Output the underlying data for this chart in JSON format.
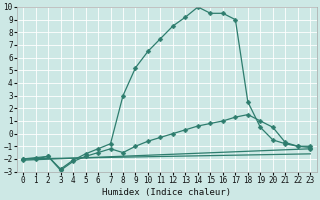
{
  "title": "",
  "xlabel": "Humidex (Indice chaleur)",
  "xlim": [
    -0.5,
    23.5
  ],
  "ylim": [
    -3,
    10
  ],
  "bg_color": "#cde8e5",
  "grid_color": "#ffffff",
  "line_color": "#2e7d6e",
  "line1_x": [
    0,
    1,
    2,
    3,
    4,
    5,
    6,
    7,
    8,
    9,
    10,
    11,
    12,
    13,
    14,
    15,
    16,
    17,
    18,
    19,
    20,
    21,
    22,
    23
  ],
  "line1_y": [
    -2.0,
    -2.0,
    -1.8,
    -2.8,
    -2.1,
    -1.6,
    -1.2,
    -0.8,
    3.0,
    5.2,
    6.5,
    7.5,
    8.5,
    9.2,
    10.0,
    9.5,
    9.5,
    9.0,
    2.5,
    0.5,
    -0.5,
    -0.8,
    -1.0,
    -1.0
  ],
  "line2_x": [
    0,
    1,
    2,
    3,
    4,
    5,
    6,
    7,
    8,
    9,
    10,
    11,
    12,
    13,
    14,
    15,
    16,
    17,
    18,
    19,
    20,
    21,
    22,
    23
  ],
  "line2_y": [
    -2.0,
    -1.9,
    -1.8,
    -2.9,
    -2.2,
    -1.8,
    -1.5,
    -1.2,
    -1.5,
    -1.0,
    -0.6,
    -0.3,
    0.0,
    0.3,
    0.6,
    0.8,
    1.0,
    1.3,
    1.5,
    1.0,
    0.5,
    -0.7,
    -1.0,
    -1.1
  ],
  "line3_x": [
    0,
    23
  ],
  "line3_y": [
    -2.1,
    -1.2
  ],
  "line4_x": [
    0,
    23
  ],
  "line4_y": [
    -2.0,
    -1.6
  ],
  "markersize": 2.5,
  "linewidth": 0.9,
  "xlabel_fontsize": 6.5,
  "tick_fontsize": 5.5
}
